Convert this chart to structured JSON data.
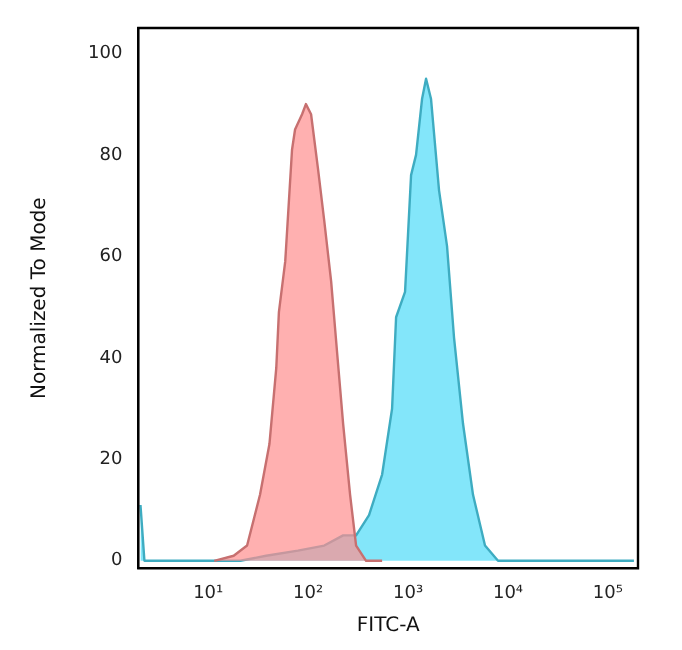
{
  "chart_data": {
    "type": "area",
    "xlabel": "FITC-A",
    "ylabel": "Normalized To Mode",
    "log": "x",
    "grid": false,
    "legend": false,
    "xlim": [
      2,
      200000
    ],
    "xticks": [
      {
        "value": 10,
        "label": "10¹"
      },
      {
        "value": 100,
        "label": "10²"
      },
      {
        "value": 1000,
        "label": "10³"
      },
      {
        "value": 10000,
        "label": "10⁴"
      },
      {
        "value": 100000,
        "label": "10⁵"
      }
    ],
    "ylim": [
      -1.5,
      105
    ],
    "yticks": [
      0,
      20,
      40,
      60,
      80,
      100
    ],
    "series": [
      {
        "color": "#ff8f8f",
        "x": [
          11.5,
          18,
          24.5,
          33,
          41,
          48,
          51,
          59,
          69,
          74,
          87,
          95,
          107,
          126,
          145,
          170,
          195,
          224,
          263,
          302,
          380,
          550
        ],
        "values": [
          0,
          1,
          3,
          13,
          23,
          38,
          49,
          59,
          81,
          85,
          88,
          90,
          88,
          77,
          67,
          55,
          41,
          27,
          13,
          3,
          0,
          0
        ]
      },
      {
        "color": "#4fdcf8",
        "x": [
          2.1,
          2.3,
          4.1,
          10,
          21,
          38,
          79,
          145,
          224,
          302,
          407,
          550,
          692,
          759,
          933,
          1072,
          1202,
          1380,
          1514,
          1698,
          2042,
          2455,
          2884,
          3548,
          4467,
          5888,
          7943,
          14450,
          182000
        ],
        "values": [
          11,
          0,
          0,
          0,
          0,
          1,
          2,
          3,
          5,
          5,
          9,
          17,
          30,
          48,
          53,
          76,
          80,
          91,
          95,
          91,
          73,
          62,
          44,
          27,
          13,
          3,
          0,
          0,
          0
        ]
      }
    ]
  }
}
